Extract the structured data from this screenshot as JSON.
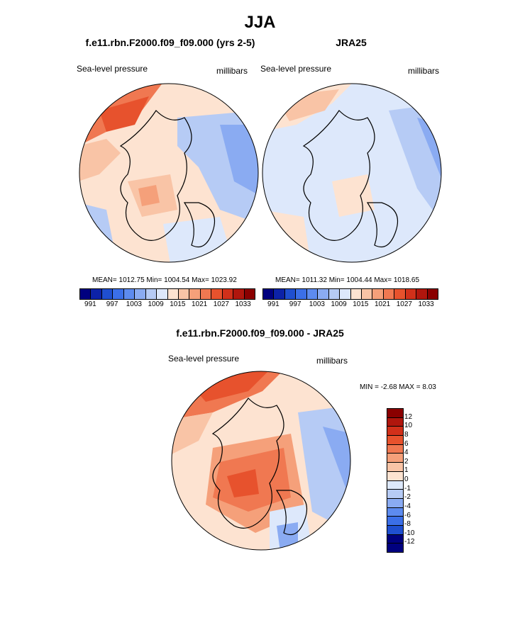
{
  "page": {
    "title": "JJA",
    "ncl_watermark": ""
  },
  "top_left": {
    "title": "f.e11.rbn.F2000.f09_f09.000 (yrs 2-5)",
    "left_label": "Sea-level pressure",
    "right_label": "millibars",
    "stats": "MEAN= 1012.75  Min= 1004.54  Max= 1023.92",
    "colorbar_ticks": [
      "991",
      "997",
      "1003",
      "1009",
      "1015",
      "1021",
      "1027",
      "1033"
    ]
  },
  "top_right": {
    "title": "JRA25",
    "left_label": "Sea-level pressure",
    "right_label": "millibars",
    "stats": "MEAN= 1011.32  Min= 1004.44  Max= 1018.65",
    "colorbar_ticks": [
      "991",
      "997",
      "1003",
      "1009",
      "1015",
      "1021",
      "1027",
      "1033"
    ]
  },
  "bottom": {
    "title": "f.e11.rbn.F2000.f09_f09.000 - JRA25",
    "left_label": "Sea-level pressure",
    "right_label": "millibars",
    "minmax": "MIN =  -2.68 MAX =   8.03",
    "colorbar_ticks": [
      "12",
      "10",
      "8",
      "6",
      "4",
      "2",
      "1",
      "0",
      "-1",
      "-2",
      "-4",
      "-6",
      "-8",
      "-10",
      "-12"
    ]
  },
  "colors": {
    "abs_scale": [
      "#00007f",
      "#0c22a8",
      "#1f4fd0",
      "#3b6fe8",
      "#5d8bef",
      "#8aabf2",
      "#b6cbf5",
      "#dde8fb",
      "#fde3d1",
      "#f9c4a6",
      "#f5a07a",
      "#f07851",
      "#e7522d",
      "#d1301a",
      "#b0160d",
      "#8a0000"
    ],
    "diff_scale": [
      "#8a0000",
      "#b0160d",
      "#d1301a",
      "#e7522d",
      "#f07851",
      "#f5a07a",
      "#f9c4a6",
      "#fde3d1",
      "#dde8fb",
      "#b6cbf5",
      "#8aabf2",
      "#5d8bef",
      "#3b6fe8",
      "#1f4fd0",
      "#00007f",
      "#00007f"
    ]
  }
}
